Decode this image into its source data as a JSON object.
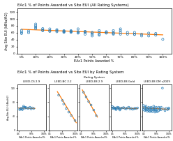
{
  "chart_data": [
    {
      "type": "scatter",
      "title": "EAc1 % of Points Awarded vs Site EUI (All Rating Systems)",
      "x_label": "EAc1 Points Awarded %",
      "y_label": "Avg Site EUI (kBtu/ft2)",
      "xlim": [
        -0.03,
        1.06
      ],
      "xticks": [
        {
          "value": 0.0,
          "label": "0%"
        },
        {
          "value": 0.1,
          "label": "10%"
        },
        {
          "value": 0.2,
          "label": "20%"
        },
        {
          "value": 0.3,
          "label": "30%"
        },
        {
          "value": 0.4,
          "label": "40%"
        },
        {
          "value": 0.5,
          "label": "50%"
        },
        {
          "value": 0.6,
          "label": "60%"
        },
        {
          "value": 0.7,
          "label": "70%"
        },
        {
          "value": 0.8,
          "label": "80%"
        },
        {
          "value": 0.9,
          "label": "90%"
        },
        {
          "value": 1.0,
          "label": "100%"
        }
      ],
      "ylim": [
        0,
        130
      ],
      "yticks": [
        0,
        20,
        40,
        60,
        80,
        100,
        120
      ],
      "grid": false,
      "series": [
        {
          "type": "scatter",
          "x": [
            0.0,
            0.0,
            0.0,
            0.05,
            0.05,
            0.1,
            0.1,
            0.1,
            0.1,
            0.15,
            0.15,
            0.15,
            0.2,
            0.2,
            0.2,
            0.25,
            0.25,
            0.25,
            0.3,
            0.3,
            0.3,
            0.3,
            0.35,
            0.35,
            0.35,
            0.35,
            0.4,
            0.4,
            0.4,
            0.4,
            0.45,
            0.45,
            0.45,
            0.45,
            0.5,
            0.5,
            0.5,
            0.5,
            0.55,
            0.55,
            0.55,
            0.55,
            0.6,
            0.6,
            0.6,
            0.65,
            0.65,
            0.65,
            0.65,
            0.7,
            0.7,
            0.7,
            0.7,
            0.75,
            0.75,
            0.8,
            0.8,
            0.8,
            0.85,
            0.85,
            0.9,
            0.9,
            0.95,
            0.95,
            1.0
          ],
          "values": [
            62,
            67,
            58,
            65,
            60,
            80,
            85,
            72,
            76,
            66,
            72,
            68,
            66,
            64,
            71,
            63,
            66,
            69,
            63,
            66,
            64,
            61,
            66,
            63,
            61,
            64,
            71,
            61,
            63,
            59,
            61,
            64,
            63,
            56,
            56,
            61,
            59,
            51,
            66,
            56,
            61,
            53,
            63,
            59,
            61,
            61,
            56,
            58,
            66,
            56,
            66,
            71,
            61,
            61,
            56,
            56,
            61,
            55,
            51,
            56,
            51,
            59,
            53,
            58,
            41
          ]
        },
        {
          "type": "line",
          "x": [
            0.0,
            1.0
          ],
          "values": [
            70,
            54
          ]
        }
      ]
    },
    {
      "type": "scatter",
      "title": "LEED-CS 2.9",
      "x_label": "EAc1 Points Awarded %",
      "y_label": "Avg Site EUI (kBtu/ft2)",
      "annotations": [
        "EAc1 % of Points Awarded vs Site EUI by Rating System",
        "Rating System"
      ],
      "xlim": [
        -0.05,
        1.1
      ],
      "xticks": [
        {
          "value": 0,
          "label": "0%"
        },
        {
          "value": 0.5,
          "label": "50%"
        },
        {
          "value": 1.0,
          "label": "100%"
        }
      ],
      "ylim": [
        0,
        130
      ],
      "yticks": [
        0,
        40,
        80,
        120
      ],
      "grid": false,
      "series": [
        {
          "type": "scatter",
          "x": [
            0.0,
            0.05,
            0.1,
            0.1,
            0.15,
            0.15,
            0.2,
            0.2,
            0.25,
            0.25,
            0.3,
            0.35,
            0.4,
            0.45,
            0.5,
            0.55,
            0.6
          ],
          "values": [
            61,
            59,
            63,
            61,
            61,
            59,
            69,
            66,
            66,
            63,
            65,
            63,
            63,
            66,
            61,
            64,
            62
          ]
        },
        {
          "type": "line",
          "x": [
            0.0,
            0.65
          ],
          "values": [
            63.5,
            62.5
          ]
        }
      ]
    },
    {
      "type": "scatter",
      "title": "LEED-NC 2.2",
      "x_label": "EAc1 Points Awarded %",
      "xlim": [
        -0.05,
        1.1
      ],
      "xticks": [
        {
          "value": 0,
          "label": "0%"
        },
        {
          "value": 0.5,
          "label": "50%"
        },
        {
          "value": 1.0,
          "label": "100%"
        }
      ],
      "ylim": [
        0,
        130
      ],
      "yticks": [
        0,
        40,
        80,
        120
      ],
      "tick_labels": "x",
      "grid": false,
      "series": [
        {
          "type": "scatter",
          "x": [
            0.35,
            0.5,
            0.55,
            0.65,
            0.75,
            0.85,
            1.0
          ],
          "values": [
            100,
            85,
            75,
            62,
            52,
            42,
            28
          ]
        },
        {
          "type": "line",
          "x": [
            0.3,
            1.05
          ],
          "values": [
            110,
            22
          ]
        }
      ]
    },
    {
      "type": "scatter",
      "title": "LEED-EB 2.9",
      "x_label": "EAc1 Points Awarded %",
      "xlim": [
        -0.05,
        1.1
      ],
      "xticks": [
        {
          "value": 0,
          "label": "0%"
        },
        {
          "value": 0.5,
          "label": "50%"
        },
        {
          "value": 1.0,
          "label": "100%"
        }
      ],
      "ylim": [
        0,
        130
      ],
      "yticks": [
        0,
        40,
        80,
        120
      ],
      "tick_labels": "x",
      "grid": false,
      "series": [
        {
          "type": "scatter",
          "x": [
            0.1,
            0.2,
            0.3,
            0.4,
            0.5,
            0.6
          ],
          "values": [
            108,
            95,
            82,
            72,
            58,
            42
          ]
        },
        {
          "type": "line",
          "x": [
            0.05,
            0.65
          ],
          "values": [
            115,
            38
          ]
        }
      ]
    },
    {
      "type": "scatter",
      "title": "LEED-EB Gold",
      "x_label": "EAc1 Points Awarded %",
      "xlim": [
        -0.05,
        1.1
      ],
      "xticks": [
        {
          "value": 0,
          "label": "0%"
        },
        {
          "value": 0.5,
          "label": "50%"
        },
        {
          "value": 1.0,
          "label": "100%"
        }
      ],
      "ylim": [
        0,
        130
      ],
      "yticks": [
        0,
        40,
        80,
        120
      ],
      "tick_labels": "x",
      "grid": false,
      "series": [
        {
          "type": "scatter",
          "x": [
            0.0,
            0.0,
            0.05,
            0.05,
            0.1,
            0.1,
            0.15,
            0.15,
            0.2,
            0.2,
            0.25,
            0.25,
            0.3,
            0.3,
            0.35,
            0.4,
            0.45,
            0.5,
            0.55,
            0.6,
            0.65,
            0.7,
            0.75,
            0.8,
            0.85,
            0.9,
            0.95,
            1.0
          ],
          "values": [
            68,
            63,
            65,
            62,
            64,
            61,
            62,
            59,
            66,
            63,
            65,
            62,
            61,
            58,
            63,
            64,
            65,
            62,
            61,
            64,
            66,
            61,
            63,
            60,
            61,
            63,
            62,
            64
          ]
        },
        {
          "type": "line",
          "x": [
            0.0,
            1.0
          ],
          "values": [
            64,
            62
          ]
        }
      ]
    },
    {
      "type": "scatter",
      "title": "LEED-EB OM v2009",
      "x_label": "EAc1 Points Awarded %",
      "xlim": [
        -0.05,
        1.1
      ],
      "xticks": [
        {
          "value": 0,
          "label": "0%"
        },
        {
          "value": 0.5,
          "label": "50%"
        },
        {
          "value": 1.0,
          "label": "100%"
        }
      ],
      "ylim": [
        0,
        130
      ],
      "yticks": [
        0,
        40,
        80,
        120
      ],
      "tick_labels": "x",
      "grid": false,
      "series": [
        {
          "type": "scatter",
          "x": [
            0.0,
            0.0,
            0.0,
            0.05,
            0.05,
            0.05,
            0.1,
            0.1,
            0.1,
            0.15,
            0.15,
            0.15,
            0.2,
            0.2,
            0.2,
            0.25,
            0.25,
            0.25,
            0.3,
            0.3,
            0.3,
            0.35,
            0.35,
            0.35,
            0.4,
            0.4,
            0.4,
            0.45,
            0.45,
            0.45,
            0.5,
            0.5,
            0.5,
            0.55,
            0.55,
            0.6,
            0.6,
            0.65,
            0.65,
            0.7,
            0.7,
            0.75,
            0.8,
            0.85,
            0.9,
            0.95,
            1.0,
            1.0
          ],
          "values": [
            71,
            64,
            59,
            66,
            61,
            56,
            69,
            63,
            58,
            63,
            59,
            54,
            66,
            61,
            56,
            63,
            58,
            53,
            66,
            61,
            56,
            63,
            58,
            53,
            69,
            63,
            58,
            63,
            58,
            52,
            66,
            59,
            54,
            61,
            53,
            66,
            56,
            63,
            59,
            66,
            59,
            120,
            61,
            56,
            63,
            59,
            64,
            61
          ]
        },
        {
          "type": "line",
          "x": [
            0.0,
            1.0
          ],
          "values": [
            64,
            60
          ]
        }
      ]
    }
  ]
}
